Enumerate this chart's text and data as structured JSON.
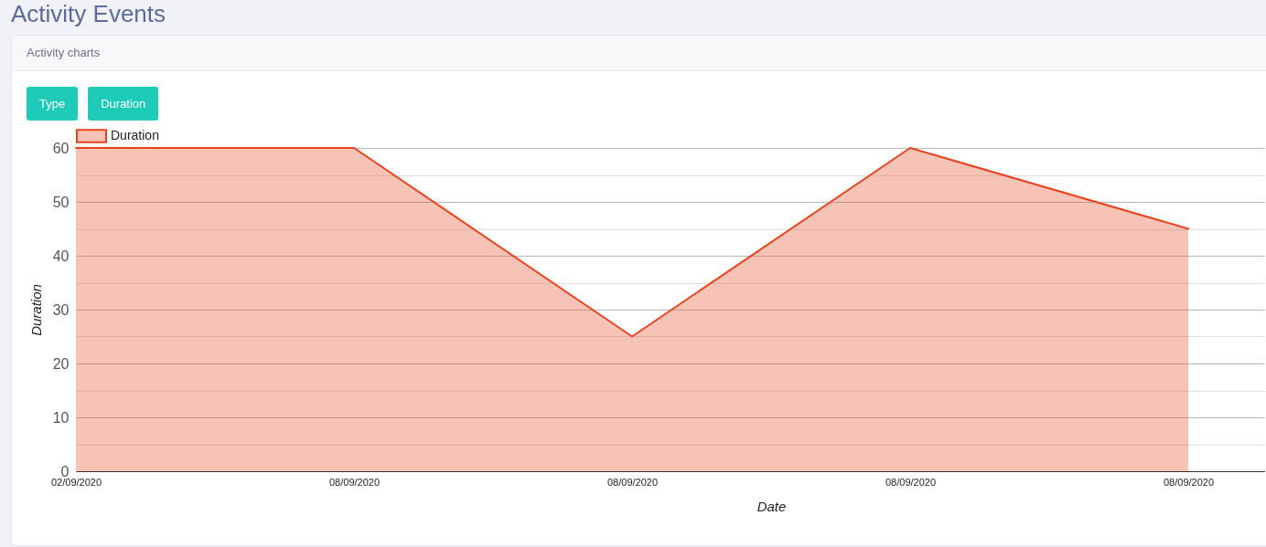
{
  "chart_data": {
    "type": "area",
    "title": "Activity Events",
    "subtitle": "Activity charts",
    "annotations": [
      "Type",
      "Duration"
    ],
    "xlabel": "Date",
    "ylabel": "Duration",
    "categories": [
      "02/09/2020",
      "08/09/2020",
      "08/09/2020",
      "08/09/2020",
      "08/09/2020"
    ],
    "series": [
      {
        "name": "Duration",
        "color": "#e8431f",
        "values": [
          60,
          60,
          25,
          60,
          45
        ]
      }
    ],
    "ylim": [
      0,
      60
    ],
    "yticks": [
      0,
      {
        "value": 5,
        "label": null
      },
      10,
      {
        "value": 15,
        "label": null
      },
      20,
      {
        "value": 25,
        "label": null
      },
      30,
      {
        "value": 35,
        "label": null
      },
      40,
      {
        "value": 45,
        "label": null
      },
      50,
      {
        "value": 55,
        "label": null
      },
      60
    ],
    "grid": "y",
    "legend": "top left"
  }
}
